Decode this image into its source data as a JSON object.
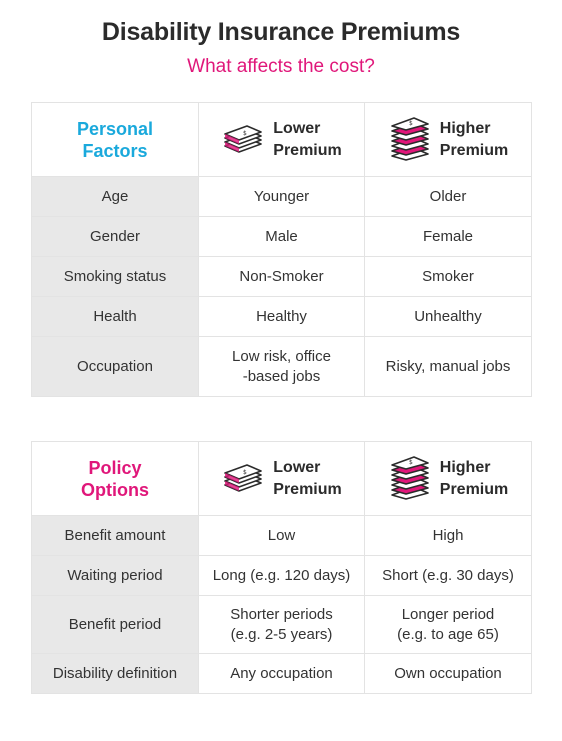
{
  "title": "Disability Insurance Premiums",
  "subtitle": "What affects the cost?",
  "colors": {
    "accent_pink": "#e0177a",
    "accent_blue": "#1aa9dc",
    "label_bg": "#e8e8e8"
  },
  "personal": {
    "header": {
      "line1": "Personal",
      "line2": "Factors",
      "lower_1": "Lower",
      "lower_2": "Premium",
      "higher_1": "Higher",
      "higher_2": "Premium"
    },
    "rows": [
      {
        "label": "Age",
        "lower": "Younger",
        "higher": "Older"
      },
      {
        "label": "Gender",
        "lower": "Male",
        "higher": "Female"
      },
      {
        "label": "Smoking status",
        "lower": "Non-Smoker",
        "higher": "Smoker"
      },
      {
        "label": "Health",
        "lower": "Healthy",
        "higher": "Unhealthy"
      },
      {
        "label": "Occupation",
        "lower_1": "Low risk, office",
        "lower_2": "-based jobs",
        "higher": "Risky, manual jobs"
      }
    ]
  },
  "policy": {
    "header": {
      "line1": "Policy",
      "line2": "Options",
      "lower_1": "Lower",
      "lower_2": "Premium",
      "higher_1": "Higher",
      "higher_2": "Premium"
    },
    "rows": [
      {
        "label": "Benefit amount",
        "lower": "Low",
        "higher": "High"
      },
      {
        "label": "Waiting period",
        "lower": "Long (e.g. 120 days)",
        "higher": "Short (e.g. 30 days)"
      },
      {
        "label": "Benefit period",
        "lower_1": "Shorter periods",
        "lower_2": "(e.g. 2-5 years)",
        "higher_1": "Longer period",
        "higher_2": "(e.g. to age 65)"
      },
      {
        "label": "Disability definition",
        "lower": "Any occupation",
        "higher": "Own occupation"
      }
    ]
  }
}
